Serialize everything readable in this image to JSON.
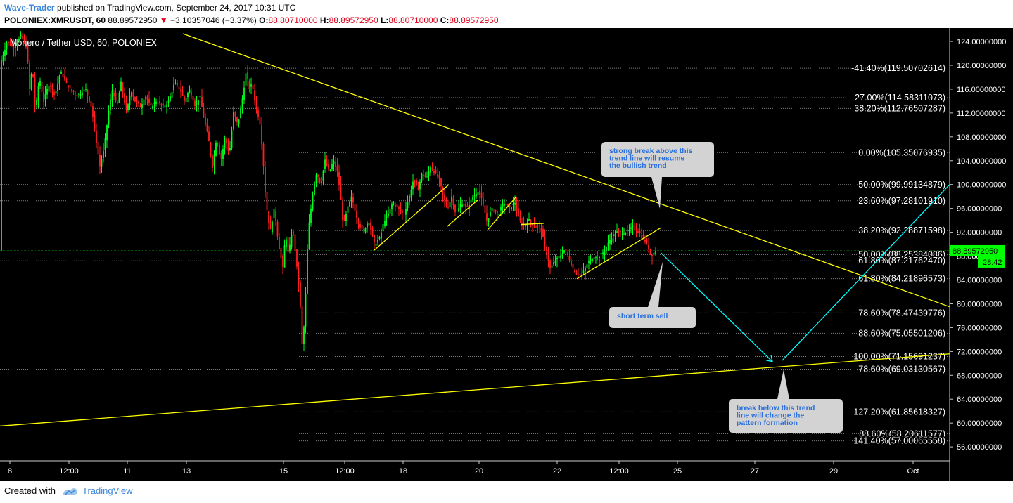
{
  "header": {
    "author": "Wave-Trader",
    "published_text": "published on TradingView.com, September 24, 2017 10:31 UTC",
    "symbol": "POLONIEX:XMRUSDT, 60",
    "last_price": "88.89572950",
    "change_arrow": "▼",
    "change": "−3.10357046 (−3.37%)",
    "open_label": "O:",
    "open": "88.80710000",
    "high_label": "H:",
    "high": "88.89572950",
    "low_label": "L:",
    "low": "88.80710000",
    "close_label": "C:",
    "close": "88.89572950"
  },
  "footer": {
    "created_with": "Created with",
    "brand": "TradingView"
  },
  "colors": {
    "background": "#000000",
    "candle_up": "#00ff1e",
    "candle_down": "#ff1e1e",
    "trendline": "#ffff00",
    "projection": "#00ffff",
    "fib_line": "#7f7f7f",
    "price_marker": "#00ff00",
    "annotation_bg": "#d3d3d3",
    "annotation_text": "#2a6fdb",
    "axis_text": "#ffffff"
  },
  "chart_data": {
    "type": "candlestick",
    "title": "Monero / Tether USD, 60, POLONIEX",
    "ylim": [
      54.6,
      125.3
    ],
    "x_ticks": [
      "8",
      "12:00",
      "11",
      "13",
      "15",
      "12:00",
      "18",
      "20",
      "22",
      "12:00",
      "25",
      "27",
      "29",
      "Oct"
    ],
    "y_ticks": [
      "124.00000000",
      "120.00000000",
      "116.00000000",
      "112.00000000",
      "108.00000000",
      "104.00000000",
      "100.00000000",
      "96.00000000",
      "92.00000000",
      "88.00000000",
      "84.00000000",
      "80.00000000",
      "76.00000000",
      "72.00000000",
      "68.00000000",
      "64.00000000",
      "60.00000000",
      "56.00000000"
    ],
    "last_price_label": "88.89572950",
    "countdown_label": "28:42",
    "fib_levels": [
      {
        "label": "-41.40%(119.50702614)",
        "value": 119.50702614
      },
      {
        "label": "-27.00%(114.58311073)",
        "value": 114.58311073
      },
      {
        "label": "38.20%(112.76507287)",
        "value": 112.76507287
      },
      {
        "label": "0.00%(105.35076935)",
        "value": 105.35076935
      },
      {
        "label": "50.00%(99.99134879)",
        "value": 99.99134879
      },
      {
        "label": "23.60%(97.28101910)",
        "value": 97.2810191
      },
      {
        "label": "38.20%(92.28871598)",
        "value": 92.28871598
      },
      {
        "label": "50.00%(88.25384086)",
        "value": 88.25384086
      },
      {
        "label": "61.80%(87.21762470)",
        "value": 87.2176247
      },
      {
        "label": "61.80%(84.21896573)",
        "value": 84.21896573
      },
      {
        "label": "78.60%(78.47439776)",
        "value": 78.47439776
      },
      {
        "label": "88.60%(75.05501206)",
        "value": 75.05501206
      },
      {
        "label": "100.00%(71.15691237)",
        "value": 71.15691237
      },
      {
        "label": "78.60%(69.03130567)",
        "value": 69.03130567
      },
      {
        "label": "127.20%(61.85618327)",
        "value": 61.85618327
      },
      {
        "label": "88.60%(58.20611577)",
        "value": 58.20611577
      },
      {
        "label": "141.40%(57.00065558)",
        "value": 57.00065558
      }
    ],
    "price_path": [
      [
        0,
        120
      ],
      [
        10,
        124
      ],
      [
        20,
        123
      ],
      [
        30,
        125
      ],
      [
        38,
        123
      ],
      [
        42,
        116
      ],
      [
        46,
        120
      ],
      [
        50,
        112
      ],
      [
        56,
        118
      ],
      [
        62,
        114
      ],
      [
        70,
        117
      ],
      [
        78,
        115
      ],
      [
        86,
        119
      ],
      [
        94,
        117
      ],
      [
        100,
        116
      ],
      [
        110,
        115
      ],
      [
        122,
        116
      ],
      [
        130,
        113
      ],
      [
        136,
        108
      ],
      [
        142,
        103
      ],
      [
        148,
        106
      ],
      [
        154,
        112
      ],
      [
        160,
        116
      ],
      [
        166,
        113
      ],
      [
        172,
        117
      ],
      [
        180,
        112
      ],
      [
        186,
        116
      ],
      [
        192,
        114
      ],
      [
        200,
        113
      ],
      [
        206,
        115
      ],
      [
        214,
        113
      ],
      [
        222,
        114
      ],
      [
        232,
        113
      ],
      [
        240,
        114
      ],
      [
        248,
        117
      ],
      [
        256,
        116
      ],
      [
        262,
        114
      ],
      [
        270,
        116
      ],
      [
        278,
        113
      ],
      [
        284,
        115
      ],
      [
        290,
        111
      ],
      [
        296,
        108
      ],
      [
        302,
        103
      ],
      [
        308,
        108
      ],
      [
        314,
        104
      ],
      [
        320,
        108
      ],
      [
        326,
        105
      ],
      [
        332,
        112
      ],
      [
        338,
        110
      ],
      [
        344,
        114
      ],
      [
        350,
        119
      ],
      [
        354,
        116
      ],
      [
        358,
        117
      ],
      [
        364,
        113
      ],
      [
        370,
        110
      ],
      [
        374,
        104
      ],
      [
        378,
        97
      ],
      [
        384,
        92
      ],
      [
        390,
        96
      ],
      [
        396,
        90
      ],
      [
        402,
        86
      ],
      [
        406,
        92
      ],
      [
        410,
        88
      ],
      [
        416,
        93
      ],
      [
        422,
        86
      ],
      [
        426,
        82
      ],
      [
        430,
        72
      ],
      [
        434,
        80
      ],
      [
        438,
        92
      ],
      [
        442,
        96
      ],
      [
        446,
        100
      ],
      [
        450,
        102
      ],
      [
        456,
        100
      ],
      [
        462,
        104
      ],
      [
        468,
        102
      ],
      [
        474,
        104
      ],
      [
        480,
        102
      ],
      [
        484,
        98
      ],
      [
        488,
        93
      ],
      [
        494,
        96
      ],
      [
        500,
        98
      ],
      [
        508,
        94
      ],
      [
        516,
        92
      ],
      [
        524,
        94
      ],
      [
        532,
        90
      ],
      [
        540,
        91
      ],
      [
        546,
        94
      ],
      [
        552,
        95
      ],
      [
        558,
        97
      ],
      [
        566,
        96
      ],
      [
        574,
        95
      ],
      [
        582,
        98
      ],
      [
        588,
        101
      ],
      [
        594,
        99
      ],
      [
        600,
        102
      ],
      [
        606,
        101
      ],
      [
        612,
        103
      ],
      [
        618,
        102
      ],
      [
        624,
        101
      ],
      [
        630,
        98
      ],
      [
        636,
        96
      ],
      [
        642,
        98
      ],
      [
        648,
        95
      ],
      [
        656,
        97
      ],
      [
        664,
        96
      ],
      [
        672,
        98
      ],
      [
        680,
        99
      ],
      [
        686,
        97
      ],
      [
        692,
        94
      ],
      [
        700,
        96
      ],
      [
        708,
        95
      ],
      [
        716,
        97
      ],
      [
        724,
        96
      ],
      [
        732,
        97
      ],
      [
        738,
        94
      ],
      [
        744,
        93
      ],
      [
        752,
        94
      ],
      [
        760,
        93
      ],
      [
        768,
        93
      ],
      [
        776,
        89
      ],
      [
        782,
        86
      ],
      [
        788,
        87
      ],
      [
        796,
        88
      ],
      [
        802,
        89
      ],
      [
        808,
        88
      ],
      [
        814,
        86
      ],
      [
        820,
        85
      ],
      [
        828,
        85
      ],
      [
        836,
        87
      ],
      [
        844,
        88
      ],
      [
        852,
        88
      ],
      [
        860,
        89
      ],
      [
        868,
        91
      ],
      [
        876,
        92
      ],
      [
        884,
        92
      ],
      [
        892,
        92
      ],
      [
        900,
        93
      ],
      [
        908,
        92
      ],
      [
        914,
        91
      ],
      [
        920,
        90
      ],
      [
        926,
        88
      ],
      [
        932,
        89
      ]
    ],
    "trend_lines": [
      {
        "from": [
          260,
          125.3
        ],
        "to": [
          1350,
          79.5
        ],
        "color": "yellow"
      },
      {
        "from": [
          0,
          59.5
        ],
        "to": [
          1350,
          71.6
        ],
        "color": "yellow"
      },
      {
        "from": [
          532,
          89
        ],
        "to": [
          638,
          100
        ],
        "color": "yellow"
      },
      {
        "from": [
          636,
          93
        ],
        "to": [
          680,
          97.5
        ],
        "color": "yellow"
      },
      {
        "from": [
          694,
          92.5
        ],
        "to": [
          734,
          98
        ],
        "color": "yellow"
      },
      {
        "from": [
          740,
          93.3
        ],
        "to": [
          774,
          93.5
        ],
        "color": "yellow"
      },
      {
        "from": [
          820,
          84.2
        ],
        "to": [
          940,
          92.8
        ],
        "color": "yellow"
      }
    ],
    "projection_lines": [
      {
        "from": [
          940,
          88.5
        ],
        "to": [
          1098,
          70.3
        ],
        "color": "cyan"
      },
      {
        "from": [
          1112,
          70.5
        ],
        "to": [
          1350,
          100
        ],
        "color": "cyan"
      }
    ],
    "annotations": [
      {
        "text": [
          "strong break above this",
          "trend line will resume",
          "the bullish trend"
        ]
      },
      {
        "text": [
          "short term sell"
        ]
      },
      {
        "text": [
          "break below this trend",
          "line will change the",
          "pattern formation"
        ]
      }
    ]
  }
}
